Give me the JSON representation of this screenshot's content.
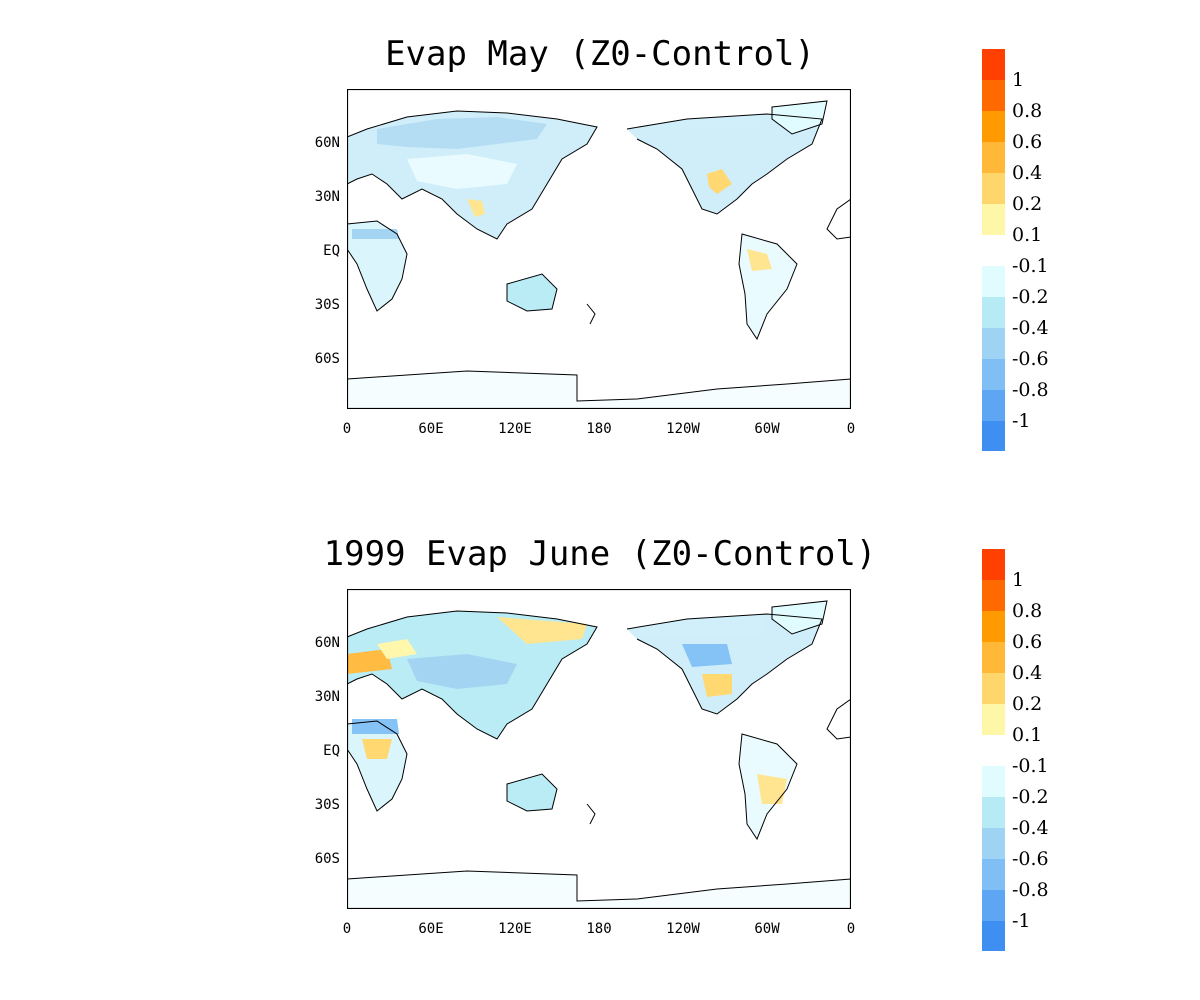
{
  "panels": [
    {
      "title": "Evap May (Z0-Control)",
      "lat_labels": [
        "60N",
        "30N",
        "EQ",
        "30S",
        "60S"
      ],
      "lon_labels": [
        "0",
        "60E",
        "120E",
        "180",
        "120W",
        "60W",
        "0"
      ]
    },
    {
      "title": "1999 Evap June (Z0-Control)",
      "lat_labels": [
        "60N",
        "30N",
        "EQ",
        "30S",
        "60S"
      ],
      "lon_labels": [
        "0",
        "60E",
        "120E",
        "180",
        "120W",
        "60W",
        "0"
      ]
    }
  ],
  "legend": {
    "labels": [
      "1",
      "0.8",
      "0.6",
      "0.4",
      "0.2",
      "0.1",
      "-0.1",
      "-0.2",
      "-0.4",
      "-0.6",
      "-0.8",
      "-1"
    ],
    "colors": [
      "#ff4000",
      "#ff6a00",
      "#ff9a00",
      "#ffb838",
      "#ffd66b",
      "#fff7a8",
      "#ffffff",
      "#e0fcff",
      "#b6ebf5",
      "#9fd3f3",
      "#7fbff5",
      "#5ea6f3",
      "#3f8ef2"
    ]
  }
}
